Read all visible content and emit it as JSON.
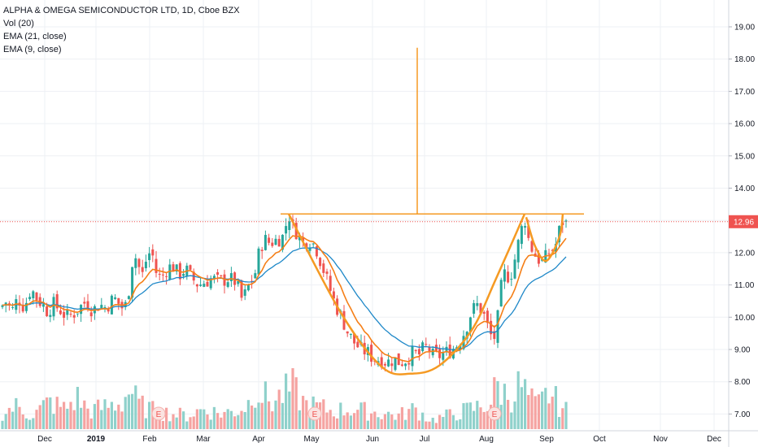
{
  "legend": {
    "title": "ALPHA & OMEGA SEMICONDUCTOR LTD, 1D, Cboe BZX",
    "vol": "Vol (20)",
    "ema21": "EMA (21, close)",
    "ema9": "EMA (9, close)"
  },
  "colors": {
    "up": "#26a69a",
    "down": "#ef5350",
    "vol_up": "#8fd1cb",
    "vol_down": "#f5a3a1",
    "ema9": "#f57f17",
    "ema21": "#1e88c8",
    "pattern": "#f59a23",
    "last_price_bg": "#ef5350",
    "grid": "#eef0f4"
  },
  "chart_data": {
    "type": "candlestick",
    "y_axis": {
      "min": 6.5,
      "max": 19.5,
      "ticks": [
        "7.00",
        "8.00",
        "9.00",
        "10.00",
        "11.00",
        "12.00",
        "13.00",
        "14.00",
        "15.00",
        "16.00",
        "17.00",
        "18.00",
        "19.00"
      ]
    },
    "x_axis": {
      "labels": [
        "Dec",
        "2019",
        "Feb",
        "Mar",
        "Apr",
        "May",
        "Jun",
        "Jul",
        "Aug",
        "Sep",
        "Oct",
        "Nov",
        "Dec"
      ],
      "bold": [
        "2019"
      ]
    },
    "last_price": "12.96",
    "price_path": [
      [
        0,
        10.3
      ],
      [
        8,
        10.5
      ],
      [
        15,
        10.2
      ],
      [
        22,
        10.6
      ],
      [
        30,
        10.3
      ],
      [
        38,
        10.9
      ],
      [
        45,
        10.6
      ],
      [
        52,
        10.4
      ],
      [
        58,
        10.2
      ],
      [
        66,
        10.4
      ],
      [
        75,
        10.2
      ],
      [
        82,
        10.0
      ],
      [
        90,
        10.1
      ],
      [
        98,
        10.3
      ],
      [
        106,
        10.5
      ],
      [
        114,
        10.2
      ],
      [
        122,
        10.4
      ],
      [
        130,
        10.3
      ],
      [
        140,
        10.6
      ],
      [
        150,
        10.3
      ],
      [
        157,
        10.4
      ],
      [
        160,
        11.4
      ],
      [
        165,
        12.0
      ],
      [
        170,
        11.6
      ],
      [
        175,
        11.3
      ],
      [
        180,
        11.8
      ],
      [
        186,
        12.1
      ],
      [
        192,
        11.4
      ],
      [
        198,
        11.2
      ],
      [
        205,
        11.5
      ],
      [
        212,
        11.6
      ],
      [
        220,
        11.3
      ],
      [
        228,
        11.5
      ],
      [
        236,
        11.2
      ],
      [
        244,
        11.0
      ],
      [
        252,
        11.1
      ],
      [
        260,
        11.2
      ],
      [
        270,
        11.1
      ],
      [
        280,
        11.2
      ],
      [
        290,
        11.1
      ],
      [
        298,
        10.5
      ],
      [
        306,
        11.0
      ],
      [
        314,
        11.4
      ],
      [
        320,
        12.2
      ],
      [
        326,
        12.4
      ],
      [
        332,
        12.3
      ],
      [
        340,
        12.4
      ],
      [
        348,
        12.5
      ],
      [
        355,
        13.2
      ],
      [
        360,
        12.8
      ],
      [
        366,
        12.6
      ],
      [
        372,
        12.3
      ],
      [
        380,
        12.4
      ],
      [
        388,
        12.2
      ],
      [
        396,
        11.6
      ],
      [
        404,
        11.0
      ],
      [
        412,
        10.4
      ],
      [
        420,
        10.0
      ],
      [
        428,
        9.5
      ],
      [
        436,
        9.2
      ],
      [
        444,
        9.0
      ],
      [
        452,
        8.9
      ],
      [
        460,
        8.7
      ],
      [
        468,
        8.7
      ],
      [
        476,
        8.6
      ],
      [
        484,
        8.7
      ],
      [
        492,
        8.6
      ],
      [
        500,
        8.7
      ],
      [
        508,
        8.9
      ],
      [
        514,
        8.8
      ],
      [
        520,
        9.0
      ],
      [
        526,
        9.1
      ],
      [
        532,
        8.8
      ],
      [
        540,
        8.8
      ],
      [
        548,
        8.9
      ],
      [
        556,
        9.0
      ],
      [
        564,
        9.2
      ],
      [
        572,
        9.6
      ],
      [
        580,
        10.2
      ],
      [
        588,
        10.4
      ],
      [
        596,
        10.0
      ],
      [
        602,
        9.5
      ],
      [
        607,
        9.3
      ],
      [
        611,
        9.7
      ],
      [
        615,
        10.8
      ],
      [
        621,
        11.4
      ],
      [
        627,
        11.2
      ],
      [
        633,
        11.8
      ],
      [
        640,
        12.6
      ],
      [
        645,
        13.1
      ],
      [
        650,
        12.4
      ],
      [
        656,
        12.0
      ],
      [
        662,
        11.8
      ],
      [
        668,
        11.7
      ],
      [
        674,
        12.0
      ],
      [
        680,
        12.1
      ],
      [
        686,
        12.4
      ],
      [
        690,
        13.1
      ],
      [
        694,
        12.8
      ],
      [
        697,
        12.96
      ]
    ],
    "volume_profile": [
      [
        0,
        0.35
      ],
      [
        20,
        0.5
      ],
      [
        40,
        0.3
      ],
      [
        60,
        0.6
      ],
      [
        80,
        0.45
      ],
      [
        95,
        0.7
      ],
      [
        110,
        0.4
      ],
      [
        130,
        0.5
      ],
      [
        150,
        0.6
      ],
      [
        160,
        0.9
      ],
      [
        170,
        0.55
      ],
      [
        190,
        0.4
      ],
      [
        210,
        0.35
      ],
      [
        230,
        0.3
      ],
      [
        250,
        0.45
      ],
      [
        270,
        0.35
      ],
      [
        290,
        0.4
      ],
      [
        305,
        0.55
      ],
      [
        312,
        1.0
      ],
      [
        320,
        0.8
      ],
      [
        335,
        0.6
      ],
      [
        350,
        0.8
      ],
      [
        360,
        0.9
      ],
      [
        375,
        0.55
      ],
      [
        390,
        0.5
      ],
      [
        410,
        0.4
      ],
      [
        430,
        0.45
      ],
      [
        450,
        0.4
      ],
      [
        470,
        0.35
      ],
      [
        490,
        0.3
      ],
      [
        510,
        0.45
      ],
      [
        530,
        0.2
      ],
      [
        550,
        0.3
      ],
      [
        570,
        0.4
      ],
      [
        590,
        0.5
      ],
      [
        605,
        0.6
      ],
      [
        610,
        1.0
      ],
      [
        620,
        0.8
      ],
      [
        630,
        0.75
      ],
      [
        640,
        1.0
      ],
      [
        650,
        0.7
      ],
      [
        660,
        0.5
      ],
      [
        675,
        0.8
      ],
      [
        685,
        0.6
      ],
      [
        697,
        0.4
      ]
    ],
    "pattern": {
      "resistance_level": 13.2,
      "resistance_x": [
        345,
        718
      ],
      "target_line_top": 18.35,
      "target_x": 513,
      "cup": [
        [
          355,
          13.2
        ],
        [
          420,
          10.1
        ],
        [
          470,
          8.45
        ],
        [
          505,
          8.25
        ],
        [
          540,
          8.5
        ],
        [
          580,
          9.6
        ],
        [
          610,
          11.2
        ],
        [
          645,
          13.2
        ]
      ],
      "handle": [
        [
          647,
          13.1
        ],
        [
          658,
          12.2
        ],
        [
          672,
          11.75
        ],
        [
          688,
          12.5
        ],
        [
          692,
          13.2
        ]
      ]
    },
    "earnings_markers": [
      {
        "label": "E",
        "x": 195
      },
      {
        "label": "E",
        "x": 387
      },
      {
        "label": "E",
        "x": 608
      }
    ]
  }
}
